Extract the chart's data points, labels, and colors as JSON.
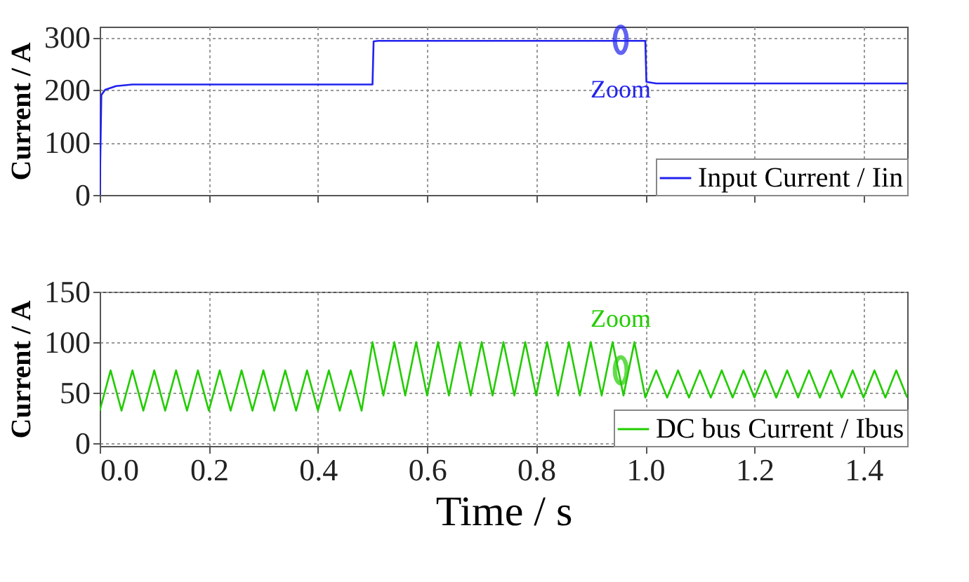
{
  "chart_data": [
    {
      "type": "line",
      "xlim": [
        0,
        1.48
      ],
      "ylim": [
        0,
        320
      ],
      "yticks": [
        0,
        100,
        200,
        300
      ],
      "xticks": [
        0,
        0.2,
        0.4,
        0.6,
        0.8,
        1,
        1.2,
        1.4
      ],
      "ylabel": "Current / A",
      "tick_labels": "y",
      "grid": true,
      "legend": "bottom right",
      "line_style": "solid",
      "marker": "none",
      "series": [
        {
          "name": "Input Current / Iin",
          "color": "#2222ee",
          "x": [
            0,
            0.003,
            0.01,
            0.03,
            0.06,
            0.5,
            0.502,
            0.51,
            1.0,
            1.002,
            1.02,
            1.48
          ],
          "values": [
            0,
            190,
            200,
            207,
            210,
            210,
            292,
            293,
            293,
            215,
            212,
            212
          ]
        }
      ],
      "annotations": [
        {
          "text": "Zoom",
          "x": 0.955,
          "y": 295
        }
      ]
    },
    {
      "type": "line",
      "xlim": [
        0,
        1.48
      ],
      "ylim": [
        -3,
        150
      ],
      "yticks": [
        0,
        50,
        100,
        150
      ],
      "xticks": [
        {
          "value": 0,
          "label": "0.0"
        },
        {
          "value": 0.2,
          "label": "0.2"
        },
        {
          "value": 0.4,
          "label": "0.4"
        },
        {
          "value": 0.6,
          "label": "0.6"
        },
        {
          "value": 0.8,
          "label": "0.8"
        },
        {
          "value": 1.0,
          "label": "1.0"
        },
        {
          "value": 1.2,
          "label": "1.2"
        },
        {
          "value": 1.4,
          "label": "1.4"
        }
      ],
      "xlabel": "Time / s",
      "ylabel": "Current / A",
      "grid": true,
      "legend": "bottom right",
      "line_style": "solid",
      "marker": "none",
      "series": [
        {
          "name": "DC bus Current / Ibus",
          "color": "#22cc00",
          "x": [
            0,
            0.02,
            0.04,
            0.06,
            0.08,
            0.1,
            0.12,
            0.14,
            0.16,
            0.18,
            0.2,
            0.22,
            0.24,
            0.26,
            0.28,
            0.3,
            0.32,
            0.34,
            0.36,
            0.38,
            0.4,
            0.42,
            0.44,
            0.46,
            0.48,
            0.5,
            0.52,
            0.54,
            0.56,
            0.58,
            0.6,
            0.62,
            0.64,
            0.66,
            0.68,
            0.7,
            0.72,
            0.74,
            0.76,
            0.78,
            0.8,
            0.82,
            0.84,
            0.86,
            0.88,
            0.9,
            0.92,
            0.94,
            0.96,
            0.98,
            1.0,
            1.02,
            1.04,
            1.06,
            1.08,
            1.1,
            1.12,
            1.14,
            1.16,
            1.18,
            1.2,
            1.22,
            1.24,
            1.26,
            1.28,
            1.3,
            1.32,
            1.34,
            1.36,
            1.38,
            1.4,
            1.42,
            1.44,
            1.46,
            1.48
          ],
          "values": [
            32,
            72,
            32,
            72,
            32,
            72,
            32,
            72,
            32,
            72,
            32,
            72,
            32,
            72,
            32,
            72,
            32,
            72,
            32,
            72,
            32,
            72,
            32,
            72,
            32,
            100,
            47,
            100,
            47,
            100,
            47,
            100,
            47,
            100,
            47,
            100,
            47,
            100,
            47,
            100,
            47,
            100,
            47,
            100,
            47,
            100,
            47,
            100,
            47,
            100,
            45,
            72,
            45,
            72,
            45,
            72,
            45,
            72,
            45,
            72,
            45,
            72,
            45,
            72,
            45,
            72,
            45,
            72,
            45,
            72,
            45,
            72,
            45,
            72,
            45
          ]
        }
      ],
      "annotations": [
        {
          "text": "Zoom",
          "x": 0.955,
          "y": 72
        }
      ]
    }
  ]
}
